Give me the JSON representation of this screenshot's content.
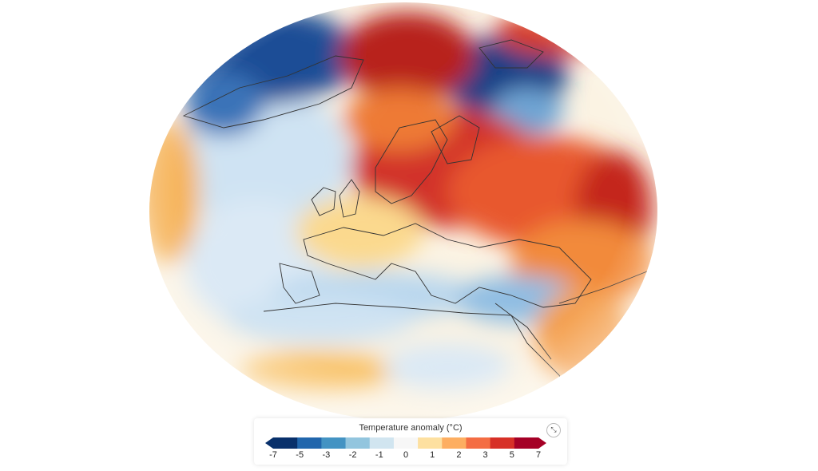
{
  "legend": {
    "title": "Temperature anomaly (°C)",
    "ticks": [
      "-7",
      "-5",
      "-3",
      "-2",
      "-1",
      "0",
      "1",
      "2",
      "3",
      "5",
      "7"
    ],
    "colors": [
      "#08306b",
      "#2166ac",
      "#4393c3",
      "#92c5de",
      "#d1e5f0",
      "#f7f7f7",
      "#fde0a0",
      "#fdae61",
      "#f46d43",
      "#d73027",
      "#a50026"
    ]
  },
  "map": {
    "region": "Europe, North Atlantic, Arctic",
    "palette": {
      "ocean_light": "#dbe9f5",
      "cold_strong": "#1f4e96",
      "cold_light": "#a9cde8",
      "neutral": "#f7f3ea",
      "warm_light": "#fbd98e",
      "warm_mid": "#f28a3a",
      "warm_strong": "#c9281f",
      "coastline": "#333333"
    }
  },
  "controls": {
    "expand_icon": "expand-arrows-icon",
    "expand_glyph": "⤡"
  }
}
